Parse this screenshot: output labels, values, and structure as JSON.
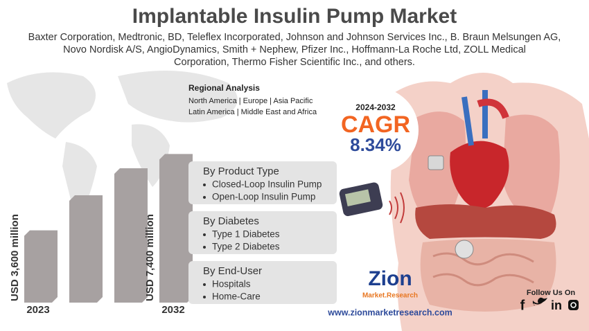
{
  "header": {
    "title": "Implantable Insulin Pump Market",
    "companies": [
      "Baxter Corporation, Medtronic, BD, Teleflex Incorporated, Johnson and Johnson Services Inc., B. Braun Melsungen AG,",
      "Novo Nordisk A/S, AngioDynamics, Smith + Nephew, Pfizer Inc., Hoffmann-La Roche Ltd, ZOLL Medical",
      "Corporation, Thermo Fisher Scientific Inc., and others."
    ]
  },
  "regional": {
    "title": "Regional Analysis",
    "lines": [
      "North America | Europe | Asia Pacific",
      "Latin America | Middle East and Africa"
    ]
  },
  "cagr": {
    "period": "2024-2032",
    "label": "CAGR",
    "value": 8.34,
    "value_label": "8.34%"
  },
  "market": {
    "bars": [
      {
        "year": "2023",
        "value": 3600,
        "label": "USD 3,600 million"
      },
      {
        "year": "2032",
        "value": 7400,
        "label": "USD 7,400 million"
      }
    ]
  },
  "segments": [
    {
      "title": "By Product Type",
      "items": [
        "Closed-Loop Insulin Pump",
        "Open-Loop Insulin Pump"
      ]
    },
    {
      "title": "By Diabetes",
      "items": [
        "Type 1 Diabetes",
        "Type 2 Diabetes"
      ]
    },
    {
      "title": "By End-User",
      "items": [
        "Hospitals",
        "Home-Care"
      ]
    }
  ],
  "brand": {
    "logo_top": "Zion",
    "logo_bottom": "Market.Research",
    "url": "www.zionmarketresearch.com"
  },
  "social": {
    "title": "Follow Us On",
    "facebook": "f",
    "linkedin": "in"
  }
}
